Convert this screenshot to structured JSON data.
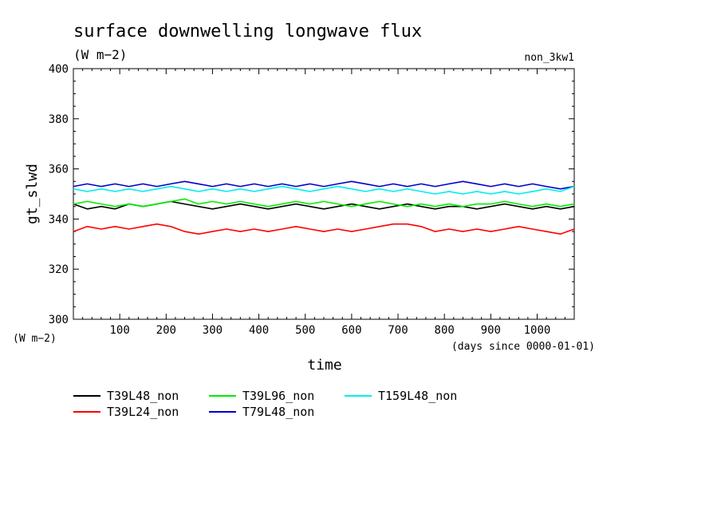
{
  "chart_data": {
    "type": "line",
    "title": "surface downwelling longwave flux",
    "units": "(W m−2)",
    "run_label": "non_3kw1",
    "ylabel": "gt_slwd",
    "y_units_label": "(W m−2)",
    "xlabel": "time",
    "x_units_label": "(days since 0000-01-01)",
    "xlim": [
      0,
      1080
    ],
    "ylim": [
      300,
      400
    ],
    "x_ticks": [
      100,
      200,
      300,
      400,
      500,
      600,
      700,
      800,
      900,
      1000
    ],
    "y_ticks": [
      300,
      320,
      340,
      360,
      380,
      400
    ],
    "grid": false,
    "legend_position": "bottom",
    "series": [
      {
        "name": "T39L48_non",
        "color": "#000000",
        "x": [
          0,
          30,
          60,
          90,
          120,
          150,
          180,
          210,
          240,
          270,
          300,
          330,
          360,
          390,
          420,
          450,
          480,
          510,
          540,
          570,
          600,
          630,
          660,
          690,
          720,
          750,
          780,
          810,
          840,
          870,
          900,
          930,
          960,
          990,
          1020,
          1050,
          1080
        ],
        "values": [
          346,
          344,
          345,
          344,
          346,
          345,
          346,
          347,
          346,
          345,
          344,
          345,
          346,
          345,
          344,
          345,
          346,
          345,
          344,
          345,
          346,
          345,
          344,
          345,
          346,
          345,
          344,
          345,
          345,
          344,
          345,
          346,
          345,
          344,
          345,
          344,
          345
        ]
      },
      {
        "name": "T39L24_non",
        "color": "#ff0000",
        "x": [
          0,
          30,
          60,
          90,
          120,
          150,
          180,
          210,
          240,
          270,
          300,
          330,
          360,
          390,
          420,
          450,
          480,
          510,
          540,
          570,
          600,
          630,
          660,
          690,
          720,
          750,
          780,
          810,
          840,
          870,
          900,
          930,
          960,
          990,
          1020,
          1050,
          1080
        ],
        "values": [
          335,
          337,
          336,
          337,
          336,
          337,
          338,
          337,
          335,
          334,
          335,
          336,
          335,
          336,
          335,
          336,
          337,
          336,
          335,
          336,
          335,
          336,
          337,
          338,
          338,
          337,
          335,
          336,
          335,
          336,
          335,
          336,
          337,
          336,
          335,
          334,
          336
        ]
      },
      {
        "name": "T39L96_non",
        "color": "#00ee00",
        "x": [
          0,
          30,
          60,
          90,
          120,
          150,
          180,
          210,
          240,
          270,
          300,
          330,
          360,
          390,
          420,
          450,
          480,
          510,
          540,
          570,
          600,
          630,
          660,
          690,
          720,
          750,
          780,
          810,
          840,
          870,
          900,
          930,
          960,
          990,
          1020,
          1050,
          1080
        ],
        "values": [
          346,
          347,
          346,
          345,
          346,
          345,
          346,
          347,
          348,
          346,
          347,
          346,
          347,
          346,
          345,
          346,
          347,
          346,
          347,
          346,
          345,
          346,
          347,
          346,
          345,
          346,
          345,
          346,
          345,
          346,
          346,
          347,
          346,
          345,
          346,
          345,
          346
        ]
      },
      {
        "name": "T79L48_non",
        "color": "#0000cc",
        "x": [
          0,
          30,
          60,
          90,
          120,
          150,
          180,
          210,
          240,
          270,
          300,
          330,
          360,
          390,
          420,
          450,
          480,
          510,
          540,
          570,
          600,
          630,
          660,
          690,
          720,
          750,
          780,
          810,
          840,
          870,
          900,
          930,
          960,
          990,
          1020,
          1050,
          1080
        ],
        "values": [
          353,
          354,
          353,
          354,
          353,
          354,
          353,
          354,
          355,
          354,
          353,
          354,
          353,
          354,
          353,
          354,
          353,
          354,
          353,
          354,
          355,
          354,
          353,
          354,
          353,
          354,
          353,
          354,
          355,
          354,
          353,
          354,
          353,
          354,
          353,
          352,
          353
        ]
      },
      {
        "name": "T159L48_non",
        "color": "#00eeee",
        "x": [
          0,
          30,
          60,
          90,
          120,
          150,
          180,
          210,
          240,
          270,
          300,
          330,
          360,
          390,
          420,
          450,
          480,
          510,
          540,
          570,
          600,
          630,
          660,
          690,
          720,
          750,
          780,
          810,
          840,
          870,
          900,
          930,
          960,
          990,
          1020,
          1050,
          1080
        ],
        "values": [
          352,
          351,
          352,
          351,
          352,
          351,
          352,
          353,
          352,
          351,
          352,
          351,
          352,
          351,
          352,
          353,
          352,
          351,
          352,
          353,
          352,
          351,
          352,
          351,
          352,
          351,
          350,
          351,
          350,
          351,
          350,
          351,
          350,
          351,
          352,
          351,
          353
        ]
      }
    ]
  }
}
